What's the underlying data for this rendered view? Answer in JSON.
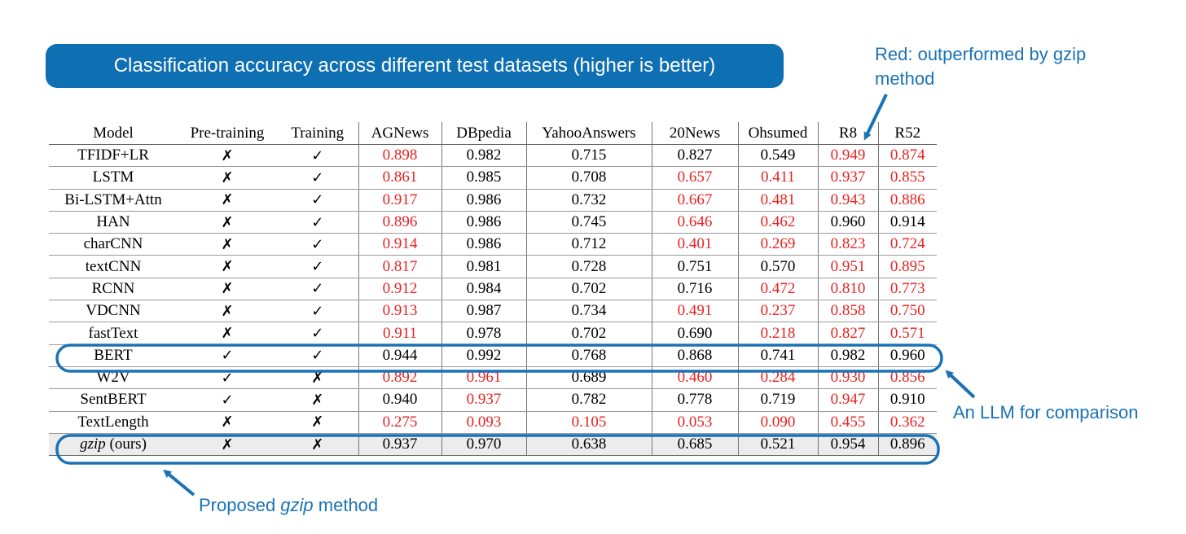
{
  "banner_title": "Classification accuracy across different test datasets (higher is better)",
  "annotations": {
    "red_note": "Red: outperformed by gzip method",
    "llm_note": "An LLM for comparison",
    "gzip_note_prefix": "Proposed ",
    "gzip_note_em": "gzip",
    "gzip_note_suffix": " method"
  },
  "colors": {
    "accent_blue": "#0e6fb3",
    "red_value": "#e8221f"
  },
  "table": {
    "headers": [
      "Model",
      "Pre-training",
      "Training",
      "AGNews",
      "DBpedia",
      "YahooAnswers",
      "20News",
      "Ohsumed",
      "R8",
      "R52"
    ],
    "rows": [
      {
        "model": "TFIDF+LR",
        "pre": "✗",
        "train": "✓",
        "values": [
          "0.898",
          "0.982",
          "0.715",
          "0.827",
          "0.549",
          "0.949",
          "0.874"
        ],
        "red": [
          true,
          false,
          false,
          false,
          false,
          true,
          true
        ]
      },
      {
        "model": "LSTM",
        "pre": "✗",
        "train": "✓",
        "values": [
          "0.861",
          "0.985",
          "0.708",
          "0.657",
          "0.411",
          "0.937",
          "0.855"
        ],
        "red": [
          true,
          false,
          false,
          true,
          true,
          true,
          true
        ]
      },
      {
        "model": "Bi-LSTM+Attn",
        "pre": "✗",
        "train": "✓",
        "values": [
          "0.917",
          "0.986",
          "0.732",
          "0.667",
          "0.481",
          "0.943",
          "0.886"
        ],
        "red": [
          true,
          false,
          false,
          true,
          true,
          true,
          true
        ]
      },
      {
        "model": "HAN",
        "pre": "✗",
        "train": "✓",
        "values": [
          "0.896",
          "0.986",
          "0.745",
          "0.646",
          "0.462",
          "0.960",
          "0.914"
        ],
        "red": [
          true,
          false,
          false,
          true,
          true,
          false,
          false
        ]
      },
      {
        "model": "charCNN",
        "pre": "✗",
        "train": "✓",
        "values": [
          "0.914",
          "0.986",
          "0.712",
          "0.401",
          "0.269",
          "0.823",
          "0.724"
        ],
        "red": [
          true,
          false,
          false,
          true,
          true,
          true,
          true
        ]
      },
      {
        "model": "textCNN",
        "pre": "✗",
        "train": "✓",
        "values": [
          "0.817",
          "0.981",
          "0.728",
          "0.751",
          "0.570",
          "0.951",
          "0.895"
        ],
        "red": [
          true,
          false,
          false,
          false,
          false,
          true,
          true
        ]
      },
      {
        "model": "RCNN",
        "pre": "✗",
        "train": "✓",
        "values": [
          "0.912",
          "0.984",
          "0.702",
          "0.716",
          "0.472",
          "0.810",
          "0.773"
        ],
        "red": [
          true,
          false,
          false,
          false,
          true,
          true,
          true
        ]
      },
      {
        "model": "VDCNN",
        "pre": "✗",
        "train": "✓",
        "values": [
          "0.913",
          "0.987",
          "0.734",
          "0.491",
          "0.237",
          "0.858",
          "0.750"
        ],
        "red": [
          true,
          false,
          false,
          true,
          true,
          true,
          true
        ]
      },
      {
        "model": "fastText",
        "pre": "✗",
        "train": "✓",
        "values": [
          "0.911",
          "0.978",
          "0.702",
          "0.690",
          "0.218",
          "0.827",
          "0.571"
        ],
        "red": [
          true,
          false,
          false,
          false,
          true,
          true,
          true
        ]
      },
      {
        "model": "BERT",
        "pre": "✓",
        "train": "✓",
        "values": [
          "0.944",
          "0.992",
          "0.768",
          "0.868",
          "0.741",
          "0.982",
          "0.960"
        ],
        "red": [
          false,
          false,
          false,
          false,
          false,
          false,
          false
        ]
      },
      {
        "model": "W2V",
        "pre": "✓",
        "train": "✗",
        "values": [
          "0.892",
          "0.961",
          "0.689",
          "0.460",
          "0.284",
          "0.930",
          "0.856"
        ],
        "red": [
          true,
          true,
          false,
          true,
          true,
          true,
          true
        ]
      },
      {
        "model": "SentBERT",
        "pre": "✓",
        "train": "✗",
        "values": [
          "0.940",
          "0.937",
          "0.782",
          "0.778",
          "0.719",
          "0.947",
          "0.910"
        ],
        "red": [
          false,
          true,
          false,
          false,
          false,
          true,
          false
        ]
      },
      {
        "model": "TextLength",
        "pre": "✗",
        "train": "✗",
        "values": [
          "0.275",
          "0.093",
          "0.105",
          "0.053",
          "0.090",
          "0.455",
          "0.362"
        ],
        "red": [
          true,
          true,
          true,
          true,
          true,
          true,
          true
        ]
      },
      {
        "model_em": "gzip",
        "model_suffix": " (ours)",
        "pre": "✗",
        "train": "✗",
        "values": [
          "0.937",
          "0.970",
          "0.638",
          "0.685",
          "0.521",
          "0.954",
          "0.896"
        ],
        "red": [
          false,
          false,
          false,
          false,
          false,
          false,
          false
        ]
      }
    ]
  }
}
